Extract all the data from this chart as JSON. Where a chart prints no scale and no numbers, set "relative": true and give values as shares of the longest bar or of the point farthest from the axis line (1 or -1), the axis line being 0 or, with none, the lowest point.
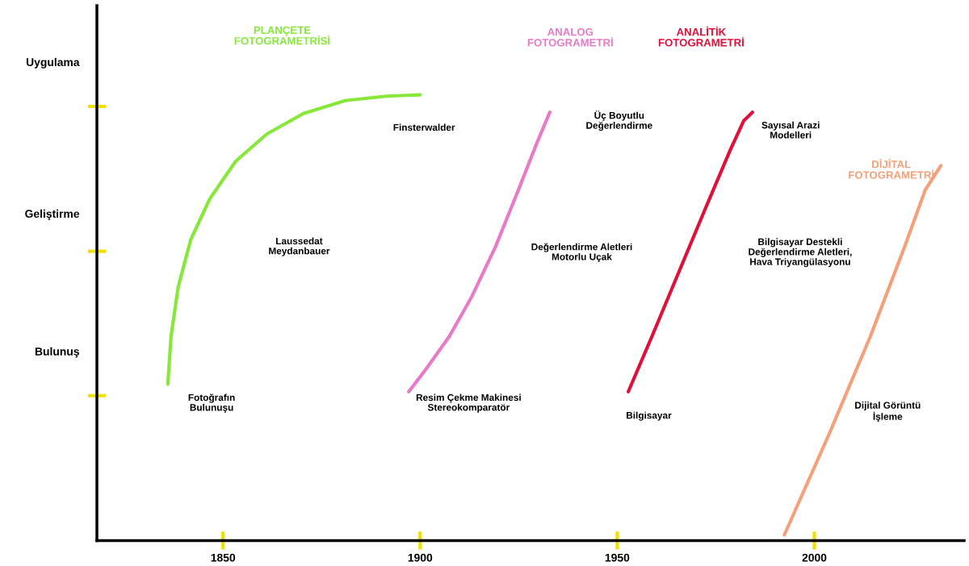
{
  "chart_data": {
    "type": "line",
    "relative": true,
    "xlim": [
      1818,
      2038
    ],
    "xticks": [
      1850,
      1900,
      1950,
      2000
    ],
    "grid": false,
    "legend": false,
    "marker": "none",
    "line_style": "solid",
    "series": [
      {
        "name": "PLANÇETE\nFOTOGRAMETRİSİ",
        "color": "#88e83a",
        "x": [
          1836.0,
          1836.8,
          1838.6,
          1841.8,
          1846.6,
          1853.2,
          1861.1,
          1870.4,
          1881.0,
          1891.5,
          1900.0
        ],
        "values": [
          0.351,
          0.458,
          0.568,
          0.675,
          0.766,
          0.851,
          0.912,
          0.958,
          0.987,
          0.997,
          1
        ]
      },
      {
        "name": "ANALOG\nFOTOGRAMETRİ",
        "color": "#e87ac8",
        "x": [
          1897.1,
          1898.6,
          1901.6,
          1907.4,
          1913.2,
          1919.1,
          1924.9,
          1929.8,
          1932.9
        ],
        "values": [
          0.334,
          0.351,
          0.386,
          0.458,
          0.549,
          0.659,
          0.786,
          0.896,
          0.961
        ]
      },
      {
        "name": "ANALİTİK\nFOTOGRAMETRİ",
        "color": "#e0103a",
        "x": [
          1952.8,
          1958.8,
          1965.7,
          1972.6,
          1978.7,
          1982.1,
          1984.3
        ],
        "values": [
          0.334,
          0.458,
          0.604,
          0.75,
          0.877,
          0.942,
          0.961
        ]
      },
      {
        "name": "DİJİTAL\nFOTOGRAMETRİ",
        "color": "#f4a07a",
        "x": [
          1992.4,
          2003.8,
          2014.2,
          2022.9,
          2028.1,
          2032.1
        ],
        "values": [
          0.013,
          0.24,
          0.458,
          0.659,
          0.786,
          0.841
        ]
      }
    ],
    "annotations": [
      "Uygulama",
      "Geliştirme",
      "Bulunuş",
      "Finsterwalder",
      "Laussedat\nMeydanbauer",
      "Fotoğrafın\nBulunuşu",
      "Resim Çekme Makinesi\nStereokomparatör",
      "Üç Boyutlu\nDeğerlendirme",
      "Değerlendirme Aletleri\nMotorlu Uçak",
      "Bilgisayar",
      "Sayısal Arazi\nModelleri",
      "Bilgisayar Destekli\nDeğerlendirme Aletleri,\nHava Triyangülasyonu",
      "Dijital Görüntü\nİşleme"
    ]
  }
}
